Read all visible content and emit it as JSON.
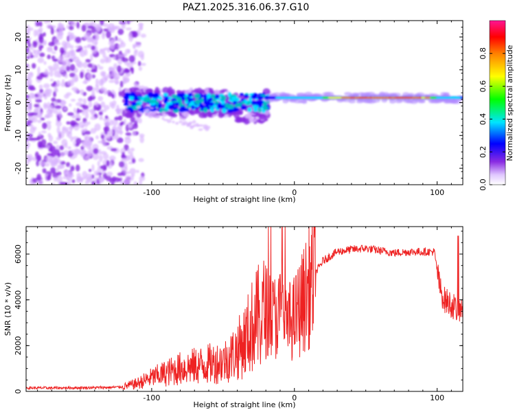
{
  "title": "PAZ1.2025.316.06.37.G10",
  "colors": {
    "snr_line": "#ee2222",
    "spec_purple": "#8a2be2",
    "spec_light": "#d8b4fe"
  },
  "chart_data": [
    {
      "type": "heatmap",
      "name": "spectrogram",
      "xlabel": "Height of straight line (km)",
      "ylabel": "Frequency (Hz)",
      "xlim": [
        -188,
        118
      ],
      "ylim": [
        -25,
        25
      ],
      "xticks": [
        -100,
        0,
        100
      ],
      "xtick_labels": [
        "-100",
        "0",
        "100"
      ],
      "yticks": [
        -20,
        -10,
        0,
        10,
        20
      ],
      "ytick_labels": [
        "-20",
        "-10",
        "0",
        "10",
        "20"
      ],
      "colorbar": {
        "label": "Normalized spectral amplitude",
        "range": [
          0,
          1
        ],
        "ticks": [
          0.0,
          0.2,
          0.4,
          0.6,
          0.8
        ],
        "tick_labels": [
          "0.0",
          "0.2",
          "0.4",
          "0.6",
          "0.8"
        ]
      },
      "description_regions": [
        {
          "x_range": [
            -188,
            -105
          ],
          "f_range": [
            -25,
            25
          ],
          "amplitude": [
            0.0,
            0.1
          ]
        },
        {
          "x_range": [
            -118,
            -18
          ],
          "f_center": 0,
          "f_spread": 4,
          "amplitude": [
            0.2,
            0.4
          ]
        },
        {
          "x_range": [
            -18,
            118
          ],
          "f_center": 1.5,
          "f_spread": 1,
          "amplitude": [
            0.5,
            1.0
          ]
        }
      ]
    },
    {
      "type": "line",
      "name": "snr",
      "xlabel": "Height of straight line (km)",
      "ylabel": "SNR (10 * v/v)",
      "xlim": [
        -188,
        118
      ],
      "ylim": [
        0,
        7200
      ],
      "xticks": [
        -100,
        0,
        100
      ],
      "xtick_labels": [
        "-100",
        "0",
        "100"
      ],
      "yticks": [
        0,
        2000,
        4000,
        6000
      ],
      "ytick_labels": [
        "0",
        "2000",
        "4000",
        "6000"
      ],
      "series": [
        {
          "name": "SNR",
          "x": [
            -188,
            -170,
            -150,
            -130,
            -120,
            -110,
            -100,
            -90,
            -80,
            -70,
            -60,
            -50,
            -45,
            -40,
            -35,
            -30,
            -25,
            -20,
            -15,
            -10,
            -5,
            0,
            5,
            10,
            15,
            20,
            25,
            30,
            40,
            50,
            60,
            70,
            80,
            90,
            98,
            102,
            105,
            110,
            115,
            118
          ],
          "values": [
            150,
            150,
            160,
            170,
            200,
            350,
            600,
            800,
            1000,
            1100,
            1200,
            1300,
            1500,
            1800,
            2200,
            2800,
            3200,
            3500,
            3200,
            3400,
            3000,
            3200,
            3800,
            4500,
            5200,
            5700,
            5900,
            6100,
            6200,
            6250,
            6150,
            6050,
            6100,
            6100,
            6100,
            4500,
            4000,
            3800,
            3500,
            3600
          ]
        }
      ]
    }
  ]
}
